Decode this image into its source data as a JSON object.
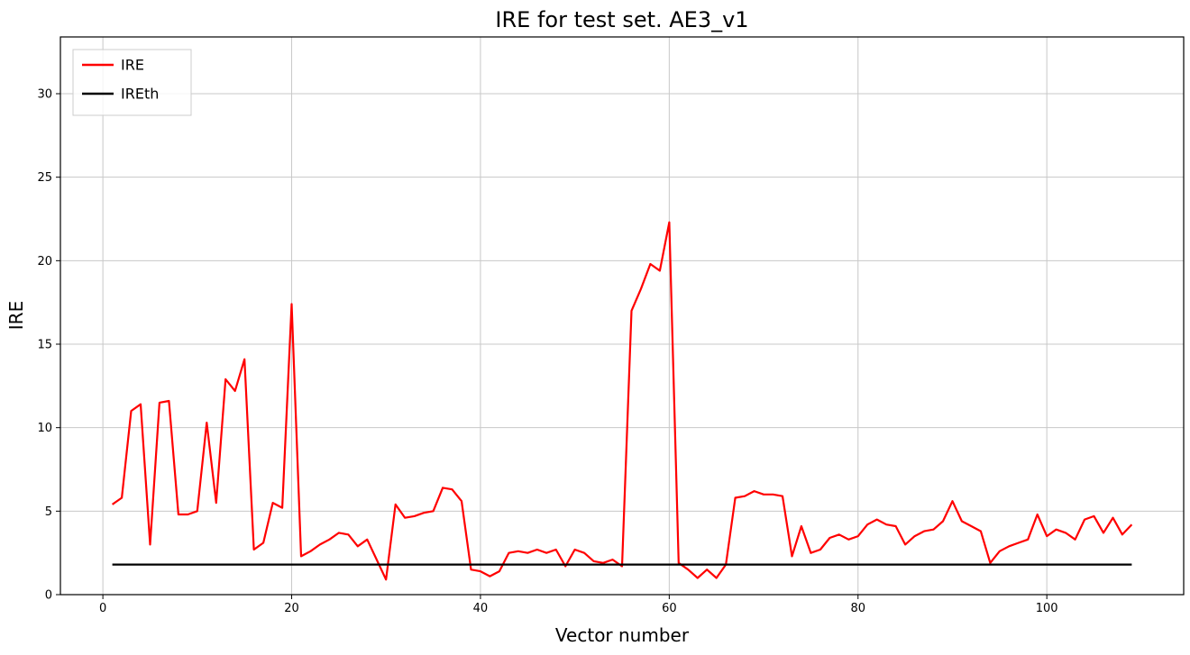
{
  "chart_data": {
    "type": "line",
    "title": "IRE for test set. AE3_v1",
    "xlabel": "Vector number",
    "ylabel": "IRE",
    "xlim": [
      -4.5,
      114.5
    ],
    "ylim": [
      0,
      33.4
    ],
    "x_ticks": [
      0,
      20,
      40,
      60,
      80,
      100
    ],
    "y_ticks": [
      0,
      5,
      10,
      15,
      20,
      25,
      30
    ],
    "grid": true,
    "legend_position": "upper-left",
    "x": [
      1,
      2,
      3,
      4,
      5,
      6,
      7,
      8,
      9,
      10,
      11,
      12,
      13,
      14,
      15,
      16,
      17,
      18,
      19,
      20,
      21,
      22,
      23,
      24,
      25,
      26,
      27,
      28,
      29,
      30,
      31,
      32,
      33,
      34,
      35,
      36,
      37,
      38,
      39,
      40,
      41,
      42,
      43,
      44,
      45,
      46,
      47,
      48,
      49,
      50,
      51,
      52,
      53,
      54,
      55,
      56,
      57,
      58,
      59,
      60,
      61,
      62,
      63,
      64,
      65,
      66,
      67,
      68,
      69,
      70,
      71,
      72,
      73,
      74,
      75,
      76,
      77,
      78,
      79,
      80,
      81,
      82,
      83,
      84,
      85,
      86,
      87,
      88,
      89,
      90,
      91,
      92,
      93,
      94,
      95,
      96,
      97,
      98,
      99,
      100,
      101,
      102,
      103,
      104,
      105,
      106,
      107,
      108,
      109
    ],
    "series": [
      {
        "name": "IRE",
        "color": "#ff0000",
        "values": [
          5.4,
          5.8,
          11.0,
          11.4,
          3.0,
          11.5,
          11.6,
          4.8,
          4.8,
          5.0,
          10.3,
          5.5,
          12.9,
          12.2,
          14.1,
          2.7,
          3.1,
          5.5,
          5.2,
          17.4,
          2.3,
          2.6,
          3.0,
          3.3,
          3.7,
          3.6,
          2.9,
          3.3,
          2.1,
          0.9,
          5.4,
          4.6,
          4.7,
          4.9,
          5.0,
          6.4,
          6.3,
          5.6,
          1.5,
          1.4,
          1.1,
          1.4,
          2.5,
          2.6,
          2.5,
          2.7,
          2.5,
          2.7,
          1.7,
          2.7,
          2.5,
          2.0,
          1.9,
          2.1,
          1.7,
          17.0,
          18.3,
          19.8,
          19.4,
          22.3,
          1.9,
          1.5,
          1.0,
          1.5,
          1.0,
          1.8,
          5.8,
          5.9,
          6.2,
          6.0,
          6.0,
          5.9,
          2.3,
          4.1,
          2.5,
          2.7,
          3.4,
          3.6,
          3.3,
          3.5,
          4.2,
          4.5,
          4.2,
          4.1,
          3.0,
          3.5,
          3.8,
          3.9,
          4.4,
          5.6,
          4.4,
          4.1,
          3.8,
          1.9,
          2.6,
          2.9,
          3.1,
          3.3,
          4.8,
          3.5,
          3.9,
          3.7,
          3.3,
          4.5,
          4.7,
          3.7,
          4.6,
          3.6,
          4.2
        ]
      },
      {
        "name": "IREth",
        "color": "#000000",
        "constant": 1.8
      }
    ]
  }
}
